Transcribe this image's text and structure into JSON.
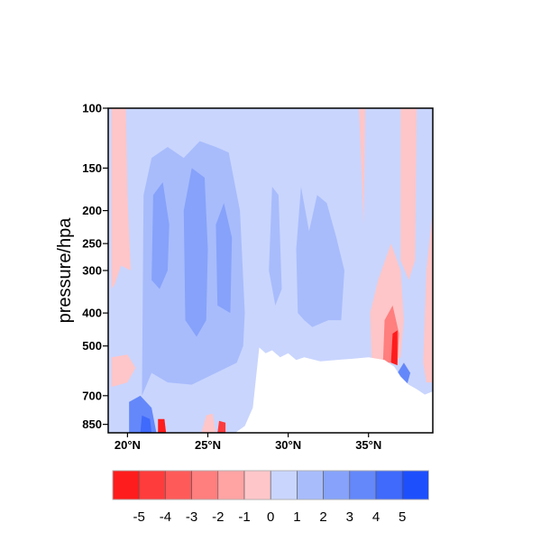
{
  "chart_data": {
    "type": "heatmap",
    "subtype": "filled-contour",
    "ylabel": "pressure/hpa",
    "xlabel": "",
    "y_scale": "log",
    "ylim": [
      900,
      100
    ],
    "xlim": [
      18.8,
      39.0
    ],
    "x_ticks": [
      {
        "value": 20,
        "label": "20°N"
      },
      {
        "value": 25,
        "label": "25°N"
      },
      {
        "value": 30,
        "label": "30°N"
      },
      {
        "value": 35,
        "label": "35°N"
      }
    ],
    "y_ticks": [
      {
        "value": 100,
        "label": "100"
      },
      {
        "value": 150,
        "label": "150"
      },
      {
        "value": 200,
        "label": "200"
      },
      {
        "value": 250,
        "label": "250"
      },
      {
        "value": 300,
        "label": "300"
      },
      {
        "value": 400,
        "label": "400"
      },
      {
        "value": 500,
        "label": "500"
      },
      {
        "value": 700,
        "label": "700"
      },
      {
        "value": 850,
        "label": "850"
      }
    ],
    "colorbar": {
      "levels": [
        "-5",
        "-4",
        "-3",
        "-2",
        "-1",
        "0",
        "1",
        "2",
        "3",
        "4",
        "5"
      ],
      "colors": [
        "#ff1c1c",
        "#ff3c3c",
        "#ff5a5a",
        "#ff7e7e",
        "#ffa3a3",
        "#fec6c8",
        "#c9d5fd",
        "#a8bcfc",
        "#86a2fa",
        "#6488fa",
        "#3f6afb",
        "#1d4ffd"
      ],
      "placement": "bottom"
    },
    "background_level_index": 6,
    "regions": [
      {
        "level_index": 7,
        "polygon": [
          [
            20.9,
            700
          ],
          [
            21.0,
            180
          ],
          [
            21.5,
            140
          ],
          [
            22.5,
            130
          ],
          [
            23.5,
            140
          ],
          [
            24.5,
            125
          ],
          [
            25.5,
            130
          ],
          [
            26.3,
            135
          ],
          [
            27.0,
            200
          ],
          [
            27.3,
            400
          ],
          [
            27.2,
            500
          ],
          [
            26.8,
            560
          ],
          [
            25.5,
            600
          ],
          [
            24.0,
            650
          ],
          [
            22.5,
            640
          ],
          [
            21.5,
            600
          ]
        ]
      },
      {
        "level_index": 7,
        "polygon": [
          [
            30.6,
            400
          ],
          [
            30.5,
            260
          ],
          [
            30.8,
            170
          ],
          [
            31.3,
            230
          ],
          [
            31.8,
            180
          ],
          [
            32.4,
            190
          ],
          [
            33.0,
            240
          ],
          [
            33.5,
            300
          ],
          [
            33.3,
            420
          ],
          [
            32.5,
            420
          ],
          [
            31.5,
            440
          ],
          [
            31.0,
            420
          ]
        ]
      },
      {
        "level_index": 7,
        "polygon": [
          [
            28.8,
            300
          ],
          [
            29.0,
            170
          ],
          [
            29.4,
            180
          ],
          [
            29.6,
            340
          ],
          [
            29.2,
            380
          ]
        ]
      },
      {
        "level_index": 8,
        "polygon": [
          [
            21.5,
            320
          ],
          [
            21.6,
            180
          ],
          [
            22.2,
            165
          ],
          [
            22.6,
            220
          ],
          [
            22.5,
            300
          ],
          [
            22.0,
            340
          ]
        ]
      },
      {
        "level_index": 8,
        "polygon": [
          [
            23.6,
            420
          ],
          [
            23.5,
            200
          ],
          [
            24.0,
            150
          ],
          [
            24.8,
            160
          ],
          [
            25.0,
            260
          ],
          [
            24.9,
            420
          ],
          [
            24.3,
            470
          ]
        ]
      },
      {
        "level_index": 8,
        "polygon": [
          [
            25.6,
            380
          ],
          [
            25.5,
            220
          ],
          [
            26.0,
            190
          ],
          [
            26.5,
            240
          ],
          [
            26.4,
            400
          ]
        ]
      },
      {
        "level_index": 5,
        "polygon": [
          [
            19.0,
            100
          ],
          [
            19.9,
            100
          ],
          [
            20.0,
            180
          ],
          [
            20.2,
            300
          ],
          [
            19.6,
            290
          ],
          [
            19.2,
            330
          ],
          [
            19.0,
            340
          ]
        ]
      },
      {
        "level_index": 5,
        "polygon": [
          [
            35.2,
            560
          ],
          [
            35.1,
            400
          ],
          [
            35.6,
            320
          ],
          [
            36.4,
            250
          ],
          [
            37.0,
            300
          ],
          [
            37.2,
            420
          ],
          [
            37.0,
            540
          ],
          [
            36.5,
            560
          ]
        ]
      },
      {
        "level_index": 5,
        "polygon": [
          [
            37.0,
            280
          ],
          [
            37.0,
            100
          ],
          [
            38.0,
            100
          ],
          [
            37.9,
            280
          ],
          [
            37.5,
            320
          ]
        ]
      },
      {
        "level_index": 5,
        "polygon": [
          [
            38.4,
            560
          ],
          [
            38.6,
            300
          ],
          [
            39.0,
            200
          ],
          [
            39.0,
            640
          ],
          [
            38.6,
            640
          ]
        ]
      },
      {
        "level_index": 5,
        "polygon": [
          [
            34.4,
            100
          ],
          [
            34.8,
            100
          ],
          [
            34.7,
            220
          ]
        ]
      },
      {
        "level_index": 5,
        "polygon": [
          [
            19.0,
            540
          ],
          [
            20.0,
            530
          ],
          [
            20.5,
            580
          ],
          [
            20.0,
            640
          ],
          [
            19.0,
            660
          ]
        ]
      },
      {
        "level_index": 5,
        "polygon": [
          [
            24.6,
            900
          ],
          [
            24.9,
            800
          ],
          [
            25.3,
            790
          ],
          [
            25.5,
            900
          ]
        ]
      },
      {
        "level_index": 3,
        "polygon": [
          [
            35.9,
            560
          ],
          [
            36.0,
            420
          ],
          [
            36.5,
            380
          ],
          [
            36.9,
            460
          ],
          [
            36.8,
            560
          ]
        ]
      },
      {
        "level_index": 9,
        "polygon": [
          [
            20.1,
            900
          ],
          [
            20.1,
            730
          ],
          [
            20.8,
            700
          ],
          [
            21.5,
            760
          ],
          [
            21.8,
            900
          ]
        ]
      },
      {
        "level_index": 10,
        "polygon": [
          [
            20.8,
            900
          ],
          [
            20.9,
            800
          ],
          [
            21.4,
            820
          ],
          [
            21.5,
            900
          ]
        ]
      },
      {
        "level_index": 9,
        "polygon": [
          [
            36.8,
            600
          ],
          [
            37.2,
            560
          ],
          [
            37.6,
            600
          ],
          [
            37.4,
            650
          ],
          [
            37.0,
            640
          ]
        ]
      },
      {
        "level_index": 0,
        "polygon": [
          [
            21.9,
            900
          ],
          [
            21.9,
            820
          ],
          [
            22.3,
            820
          ],
          [
            22.4,
            900
          ]
        ]
      },
      {
        "level_index": 1,
        "polygon": [
          [
            25.6,
            900
          ],
          [
            25.7,
            830
          ],
          [
            26.1,
            840
          ],
          [
            26.1,
            900
          ]
        ]
      },
      {
        "level_index": 0,
        "polygon": [
          [
            36.4,
            560
          ],
          [
            36.5,
            460
          ],
          [
            36.8,
            450
          ],
          [
            36.8,
            570
          ]
        ]
      }
    ],
    "missing_mask": [
      [
        26.7,
        900
      ],
      [
        27.3,
        860
      ],
      [
        27.8,
        760
      ],
      [
        28.2,
        505
      ],
      [
        28.6,
        525
      ],
      [
        29.0,
        515
      ],
      [
        29.5,
        540
      ],
      [
        30.0,
        525
      ],
      [
        30.5,
        550
      ],
      [
        31.0,
        540
      ],
      [
        32.0,
        555
      ],
      [
        33.0,
        550
      ],
      [
        34.0,
        545
      ],
      [
        35.0,
        540
      ],
      [
        36.0,
        550
      ],
      [
        36.6,
        575
      ],
      [
        37.0,
        615
      ],
      [
        37.5,
        650
      ],
      [
        38.0,
        670
      ],
      [
        38.5,
        695
      ],
      [
        39.0,
        680
      ],
      [
        39.0,
        900
      ]
    ]
  }
}
